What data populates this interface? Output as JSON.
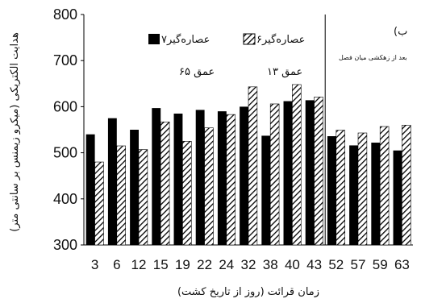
{
  "chart_data": {
    "type": "bar",
    "categories": [
      "3",
      "6",
      "12",
      "15",
      "19",
      "22",
      "24",
      "32",
      "38",
      "40",
      "43",
      "52",
      "57",
      "59",
      "63"
    ],
    "series": [
      {
        "name": "عصاره‌گیر۷",
        "pattern": "solid",
        "color": "#000000",
        "values": [
          540,
          575,
          550,
          597,
          585,
          593,
          590,
          600,
          537,
          612,
          614,
          536,
          516,
          522,
          505
        ]
      },
      {
        "name": "عصاره‌گیر۶",
        "pattern": "hatched",
        "color": "#000000",
        "values": [
          480,
          515,
          507,
          567,
          525,
          554,
          583,
          643,
          606,
          648,
          621,
          549,
          543,
          557,
          560
        ]
      }
    ],
    "ylim": [
      300,
      800
    ],
    "yticks": [
      300,
      400,
      500,
      600,
      700,
      800
    ],
    "ylabel": "هدایت الکتریکی (میکرو زیمنس بر سانتی متر)",
    "xlabel": "زمان قرائت (روز از تاریخ کشت)",
    "annotations": {
      "depth_65": "عمق ۶۵",
      "depth_13": "عمق ۱۳",
      "panel_label": "ب)",
      "panel_note": "بعد از زهکشی میان فصل"
    },
    "divider_after_category": "43",
    "grid": false,
    "legend_position": "top"
  }
}
